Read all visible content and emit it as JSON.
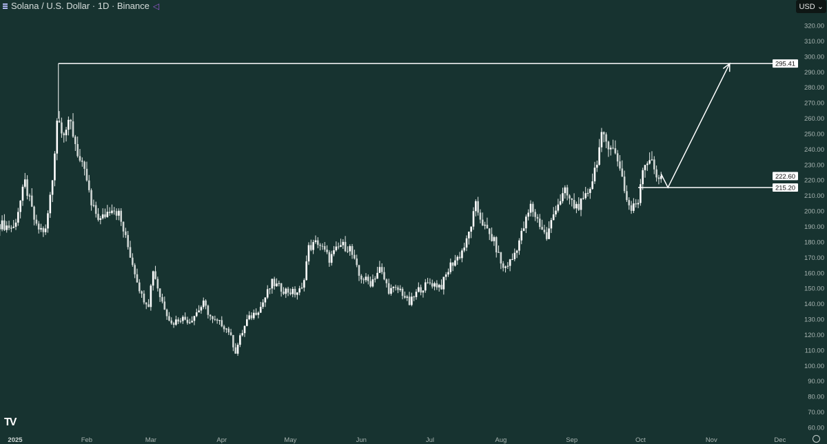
{
  "header": {
    "title": "Solana / U.S. Dollar · 1D · Binance",
    "currency": "USD"
  },
  "colors": {
    "background": "#173330",
    "candle_up": "#ffffff",
    "candle_down": "#cfd6d4",
    "line": "#ffffff",
    "axis_text": "#a9b5b2"
  },
  "icons": {
    "menu": "menu-icon",
    "indicator": "script-icon",
    "logo": "tradingview-logo",
    "settings": "gear-icon"
  },
  "chart_data": {
    "type": "candlestick",
    "title": "Solana / U.S. Dollar · 1D · Binance",
    "ylim": [
      60,
      320
    ],
    "y_ticks": [
      "60.00",
      "70.00",
      "80.00",
      "90.00",
      "100.00",
      "110.00",
      "120.00",
      "130.00",
      "140.00",
      "150.00",
      "160.00",
      "170.00",
      "180.00",
      "190.00",
      "200.00",
      "210.00",
      "220.00",
      "230.00",
      "240.00",
      "250.00",
      "260.00",
      "270.00",
      "280.00",
      "290.00",
      "300.00",
      "310.00",
      "320.00"
    ],
    "x_ticks": [
      {
        "date": "2025-01-01",
        "label": "2025"
      },
      {
        "date": "2025-02-01",
        "label": "Feb"
      },
      {
        "date": "2025-03-01",
        "label": "Mar"
      },
      {
        "date": "2025-04-01",
        "label": "Apr"
      },
      {
        "date": "2025-05-01",
        "label": "May"
      },
      {
        "date": "2025-06-01",
        "label": "Jun"
      },
      {
        "date": "2025-07-01",
        "label": "Jul"
      },
      {
        "date": "2025-08-01",
        "label": "Aug"
      },
      {
        "date": "2025-09-01",
        "label": "Sep"
      },
      {
        "date": "2025-10-01",
        "label": "Oct"
      },
      {
        "date": "2025-11-01",
        "label": "Nov"
      },
      {
        "date": "2025-12-01",
        "label": "Dec"
      }
    ],
    "close_path": [
      [
        "2024-12-25",
        191.5
      ],
      [
        "2024-12-31",
        189
      ],
      [
        "2025-01-05",
        218
      ],
      [
        "2025-01-10",
        189
      ],
      [
        "2025-01-14",
        187
      ],
      [
        "2025-01-17",
        220.5
      ],
      [
        "2025-01-19",
        260
      ],
      [
        "2025-01-22",
        252
      ],
      [
        "2025-01-25",
        256
      ],
      [
        "2025-01-29",
        232
      ],
      [
        "2025-02-01",
        220
      ],
      [
        "2025-02-03",
        203
      ],
      [
        "2025-02-07",
        194
      ],
      [
        "2025-02-12",
        203
      ],
      [
        "2025-02-15",
        198
      ],
      [
        "2025-02-20",
        171.5
      ],
      [
        "2025-02-25",
        145
      ],
      [
        "2025-02-28",
        140
      ],
      [
        "2025-03-02",
        162.5
      ],
      [
        "2025-03-05",
        145
      ],
      [
        "2025-03-10",
        127
      ],
      [
        "2025-03-14",
        131
      ],
      [
        "2025-03-18",
        129
      ],
      [
        "2025-03-24",
        140
      ],
      [
        "2025-03-28",
        129
      ],
      [
        "2025-04-01",
        127
      ],
      [
        "2025-04-04",
        122.5
      ],
      [
        "2025-04-07",
        109
      ],
      [
        "2025-04-09",
        118
      ],
      [
        "2025-04-12",
        129
      ],
      [
        "2025-04-18",
        138
      ],
      [
        "2025-04-23",
        153.5
      ],
      [
        "2025-04-28",
        149
      ],
      [
        "2025-05-03",
        147
      ],
      [
        "2025-05-06",
        149
      ],
      [
        "2025-05-09",
        176
      ],
      [
        "2025-05-13",
        180
      ],
      [
        "2025-05-18",
        169
      ],
      [
        "2025-05-23",
        178
      ],
      [
        "2025-05-27",
        176
      ],
      [
        "2025-05-31",
        158
      ],
      [
        "2025-06-05",
        153.5
      ],
      [
        "2025-06-09",
        162.5
      ],
      [
        "2025-06-13",
        149
      ],
      [
        "2025-06-18",
        149
      ],
      [
        "2025-06-22",
        140
      ],
      [
        "2025-06-26",
        149
      ],
      [
        "2025-07-01",
        153.5
      ],
      [
        "2025-07-06",
        151.5
      ],
      [
        "2025-07-10",
        165
      ],
      [
        "2025-07-14",
        171.5
      ],
      [
        "2025-07-17",
        180
      ],
      [
        "2025-07-21",
        203
      ],
      [
        "2025-07-25",
        189
      ],
      [
        "2025-07-29",
        180
      ],
      [
        "2025-08-02",
        162.5
      ],
      [
        "2025-08-06",
        169
      ],
      [
        "2025-08-10",
        185
      ],
      [
        "2025-08-14",
        203
      ],
      [
        "2025-08-18",
        191.5
      ],
      [
        "2025-08-21",
        182.5
      ],
      [
        "2025-08-25",
        203
      ],
      [
        "2025-08-29",
        212
      ],
      [
        "2025-09-02",
        203
      ],
      [
        "2025-09-06",
        205
      ],
      [
        "2025-09-10",
        220.5
      ],
      [
        "2025-09-14",
        247
      ],
      [
        "2025-09-18",
        243
      ],
      [
        "2025-09-22",
        229.5
      ],
      [
        "2025-09-25",
        207
      ],
      [
        "2025-09-27",
        200.5
      ],
      [
        "2025-09-30",
        207
      ],
      [
        "2025-10-02",
        229.5
      ],
      [
        "2025-10-05",
        234
      ],
      [
        "2025-10-08",
        223
      ],
      [
        "2025-10-10",
        222.6
      ]
    ],
    "annotations": {
      "resistance": {
        "value": 295.41,
        "label": "295.41",
        "from_date": "2025-01-19"
      },
      "support": {
        "value": 215.2,
        "label": "215.20",
        "from_date": "2025-09-30"
      },
      "last_price": {
        "value": 222.6,
        "label": "222.60"
      },
      "projection": [
        [
          "2025-10-10",
          224
        ],
        [
          "2025-10-13",
          215.2
        ],
        [
          "2025-11-09",
          295.41
        ]
      ]
    }
  }
}
